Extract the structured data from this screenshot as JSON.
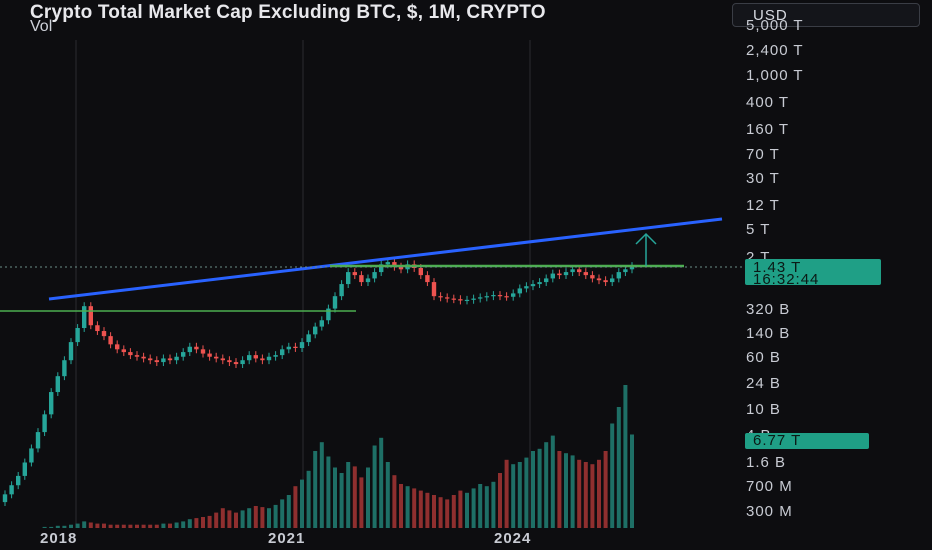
{
  "header": {
    "title": "Crypto Total Market Cap Excluding BTC, $, 1M, CRYPTO",
    "volume_label": "Vol"
  },
  "currency": {
    "label": "USD"
  },
  "price_axis": {
    "ticks": [
      "5,000 T",
      "2,400 T",
      "1,000 T",
      "400 T",
      "160 T",
      "70 T",
      "30 T",
      "12 T",
      "5 T",
      "2 T",
      "1.43 T",
      "320 B",
      "140 B",
      "60 B",
      "24 B",
      "10 B",
      "4 B",
      "1.6 B",
      "700 M",
      "300 M"
    ]
  },
  "time_axis": {
    "ticks": [
      "2018",
      "2021",
      "2024"
    ]
  },
  "last_price": {
    "value": "1.43 T",
    "countdown": "16:32:44"
  },
  "last_volume": {
    "value": "6.77 T"
  },
  "colors": {
    "up": "#26a69a",
    "down": "#ef5350",
    "trendline": "#2962ff",
    "support": "#4caf50",
    "badge": "#1f9f86"
  },
  "chart_data": {
    "type": "candlestick",
    "title": "Crypto Total Market Cap Excluding BTC, $, 1M, CRYPTO",
    "x_range": [
      "2017-01",
      "2024-12"
    ],
    "y_scale": "log",
    "y_unit": "USD",
    "candles_close_usd": [
      2000000000.0,
      2600000000.0,
      3400000000.0,
      5000000000.0,
      7500000000.0,
      12000000000.0,
      20000000000.0,
      38000000000.0,
      60000000000.0,
      95000000000.0,
      160000000000.0,
      240000000000.0,
      450000000000.0,
      260000000000.0,
      220000000000.0,
      190000000000.0,
      150000000000.0,
      130000000000.0,
      120000000000.0,
      110000000000.0,
      105000000000.0,
      100000000000.0,
      95000000000.0,
      90000000000.0,
      100000000000.0,
      95000000000.0,
      105000000000.0,
      120000000000.0,
      140000000000.0,
      130000000000.0,
      115000000000.0,
      105000000000.0,
      100000000000.0,
      95000000000.0,
      90000000000.0,
      85000000000.0,
      95000000000.0,
      110000000000.0,
      100000000000.0,
      95000000000.0,
      105000000000.0,
      110000000000.0,
      130000000000.0,
      140000000000.0,
      135000000000.0,
      160000000000.0,
      200000000000.0,
      250000000000.0,
      300000000000.0,
      420000000000.0,
      600000000000.0,
      850000000000.0,
      1200000000000.0,
      1100000000000.0,
      900000000000.0,
      1000000000000.0,
      1200000000000.0,
      1500000000000.0,
      1600000000000.0,
      1400000000000.0,
      1300000000000.0,
      1500000000000.0,
      1350000000000.0,
      1100000000000.0,
      900000000000.0,
      600000000000.0,
      580000000000.0,
      560000000000.0,
      550000000000.0,
      530000000000.0,
      540000000000.0,
      560000000000.0,
      580000000000.0,
      600000000000.0,
      620000000000.0,
      600000000000.0,
      590000000000.0,
      650000000000.0,
      750000000000.0,
      800000000000.0,
      850000000000.0,
      900000000000.0,
      1000000000000.0,
      1150000000000.0,
      1100000000000.0,
      1200000000000.0,
      1300000000000.0,
      1200000000000.0,
      1100000000000.0,
      1000000000000.0,
      950000000000.0,
      900000000000.0,
      1000000000000.0,
      1200000000000.0,
      1300000000000.0,
      1430000000000.0
    ],
    "annotations": [
      "rising trendline (blue) from 2018 high through 2021 high",
      "horizontal level near 1.43 T",
      "horizontal support near 400 B",
      "upward arrow at the right end of the trendline channel"
    ]
  }
}
